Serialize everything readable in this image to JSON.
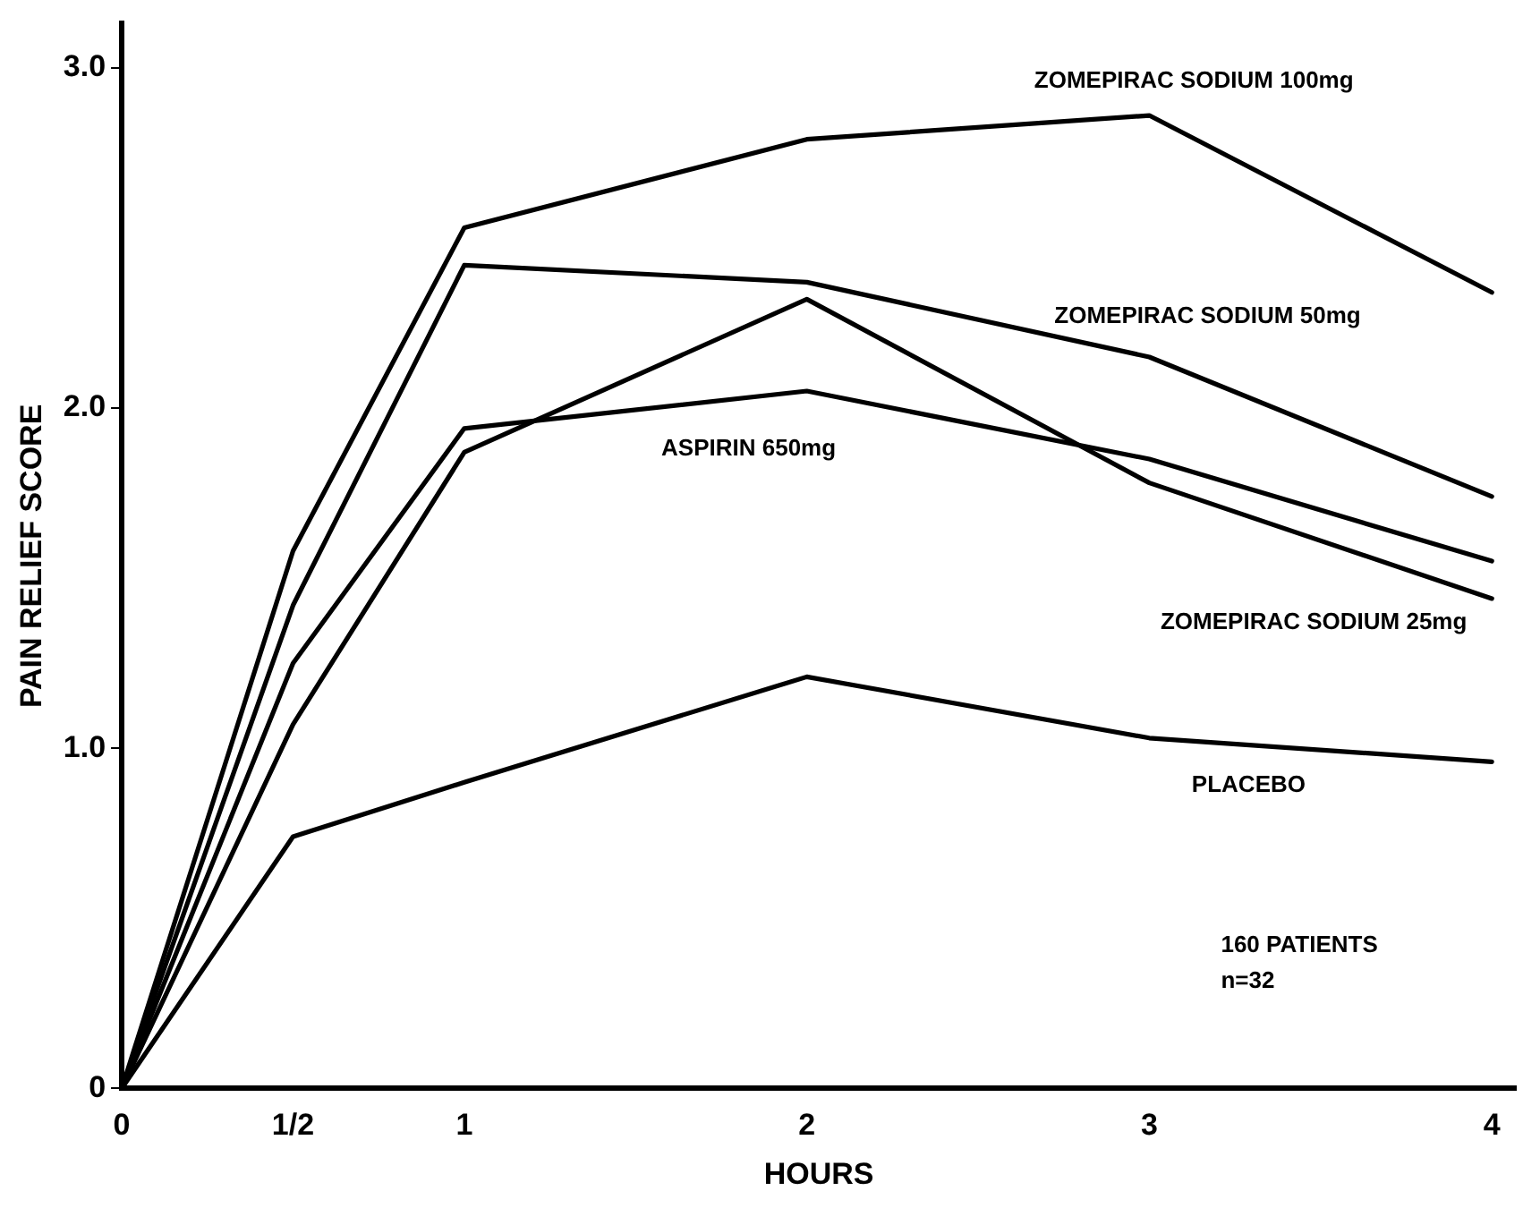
{
  "chart_data": {
    "type": "line",
    "xlabel": "HOURS",
    "ylabel": "PAIN RELIEF SCORE",
    "x": [
      0,
      0.5,
      1,
      2,
      3,
      4
    ],
    "xlim": [
      0,
      4.07
    ],
    "xticks": [
      0,
      {
        "value": 0.5,
        "label": "1/2"
      },
      1,
      2,
      3,
      4
    ],
    "ylim": [
      0,
      3.13
    ],
    "yticks": [
      0,
      {
        "value": 1,
        "label": "1.0"
      },
      {
        "value": 2,
        "label": "2.0"
      },
      {
        "value": 3,
        "label": "3.0"
      }
    ],
    "series": [
      {
        "name": "ZOMEPIRAC SODIUM 100mg",
        "color": "#000000",
        "values": [
          0,
          1.58,
          2.53,
          2.79,
          2.86,
          2.34
        ]
      },
      {
        "name": "ZOMEPIRAC SODIUM 50mg",
        "color": "#000000",
        "values": [
          0,
          1.42,
          2.42,
          2.37,
          2.15,
          1.74
        ]
      },
      {
        "name": "ASPIRIN 650mg",
        "color": "#000000",
        "values": [
          0,
          1.25,
          1.94,
          2.05,
          1.85,
          1.55
        ]
      },
      {
        "name": "ZOMEPIRAC SODIUM 25mg",
        "color": "#000000",
        "values": [
          0,
          1.07,
          1.87,
          2.32,
          1.78,
          1.44
        ]
      },
      {
        "name": "PLACEBO",
        "color": "#000000",
        "values": [
          0,
          0.74,
          0.9,
          1.21,
          1.03,
          0.96
        ]
      }
    ],
    "annotations": [
      "160 PATIENTS",
      "n=32"
    ],
    "grid": false,
    "legend": false,
    "marker": "none",
    "line_style": "solid"
  }
}
